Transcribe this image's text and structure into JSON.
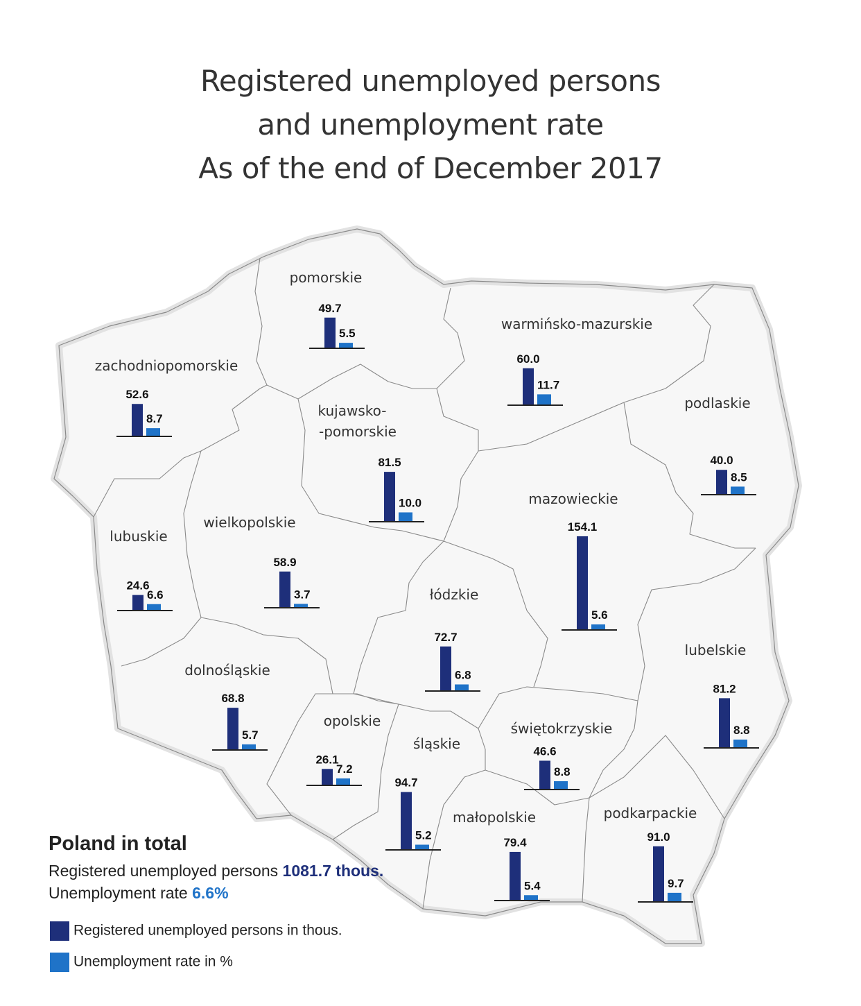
{
  "title": {
    "line1": "Registered unemployed persons",
    "line2": "and unemployment rate",
    "line3": "As of the end of December 2017"
  },
  "colors": {
    "persons": "#1e2f7a",
    "rate": "#1f73c8",
    "map_fill": "#f7f7f7",
    "map_border": "#8a8a8a"
  },
  "chart_data": {
    "type": "bar",
    "series": [
      {
        "name": "Registered unemployed persons in thous.",
        "key": "persons"
      },
      {
        "name": "Unemployment rate in %",
        "key": "rate"
      }
    ],
    "regions": [
      {
        "name": "pomorskie",
        "persons": "49.7",
        "rate": "5.5"
      },
      {
        "name": "warmińsko-mazurskie",
        "persons": "60.0",
        "rate": "11.7"
      },
      {
        "name": "zachodniopomorskie",
        "persons": "52.6",
        "rate": "8.7"
      },
      {
        "name": "kujawsko-",
        "name2": "-pomorskie",
        "persons": "81.5",
        "rate": "10.0"
      },
      {
        "name": "podlaskie",
        "persons": "40.0",
        "rate": "8.5"
      },
      {
        "name": "mazowieckie",
        "persons": "154.1",
        "rate": "5.6"
      },
      {
        "name": "lubuskie",
        "persons": "24.6",
        "rate": "6.6"
      },
      {
        "name": "wielkopolskie",
        "persons": "58.9",
        "rate": "3.7"
      },
      {
        "name": "łódzkie",
        "persons": "72.7",
        "rate": "6.8"
      },
      {
        "name": "lubelskie",
        "persons": "81.2",
        "rate": "8.8"
      },
      {
        "name": "dolnośląskie",
        "persons": "68.8",
        "rate": "5.7"
      },
      {
        "name": "opolskie",
        "persons": "26.1",
        "rate": "7.2"
      },
      {
        "name": "śląskie",
        "persons": "94.7",
        "rate": "5.2"
      },
      {
        "name": "świętokrzyskie",
        "persons": "46.6",
        "rate": "8.8"
      },
      {
        "name": "małopolskie",
        "persons": "79.4",
        "rate": "5.4"
      },
      {
        "name": "podkarpackie",
        "persons": "91.0",
        "rate": "9.7"
      }
    ]
  },
  "summary": {
    "heading": "Poland in total",
    "persons_label": "Registered unemployed persons ",
    "persons_value": "1081.7 thous.",
    "rate_label": "Unemployment rate ",
    "rate_value": "6.6%"
  },
  "legend": {
    "persons": "Registered unemployed persons in thous.",
    "rate": "Unemployment rate in %"
  }
}
